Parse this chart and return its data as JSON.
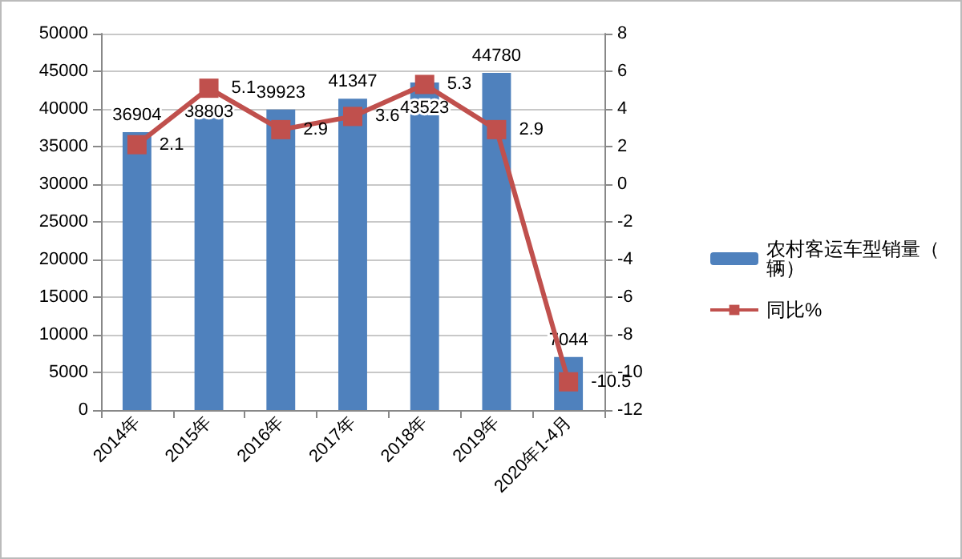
{
  "chart_data": {
    "type": "bar",
    "categories": [
      "2014年",
      "2015年",
      "2016年",
      "2017年",
      "2018年",
      "2019年",
      "2020年1-4月"
    ],
    "series": [
      {
        "name": "农村客运车型销量（辆）",
        "type": "bar",
        "color": "#4f81bd",
        "values": [
          36904,
          38803,
          39923,
          41347,
          43523,
          44780,
          7044
        ]
      },
      {
        "name": "同比%",
        "type": "line",
        "axis": "y2",
        "color": "#c0504d",
        "marker": "square",
        "values": [
          2.1,
          5.1,
          2.9,
          3.6,
          5.3,
          2.9,
          -10.5
        ]
      }
    ],
    "ylim": [
      0,
      50000
    ],
    "yticks": [
      0,
      5000,
      10000,
      15000,
      20000,
      25000,
      30000,
      35000,
      40000,
      45000,
      50000
    ],
    "y2lim": [
      -12,
      8
    ],
    "y2ticks": [
      -12,
      -10,
      -8,
      -6,
      -4,
      -2,
      0,
      2,
      4,
      6,
      8
    ],
    "data_labels": true,
    "grid": "y",
    "legend": "right"
  }
}
